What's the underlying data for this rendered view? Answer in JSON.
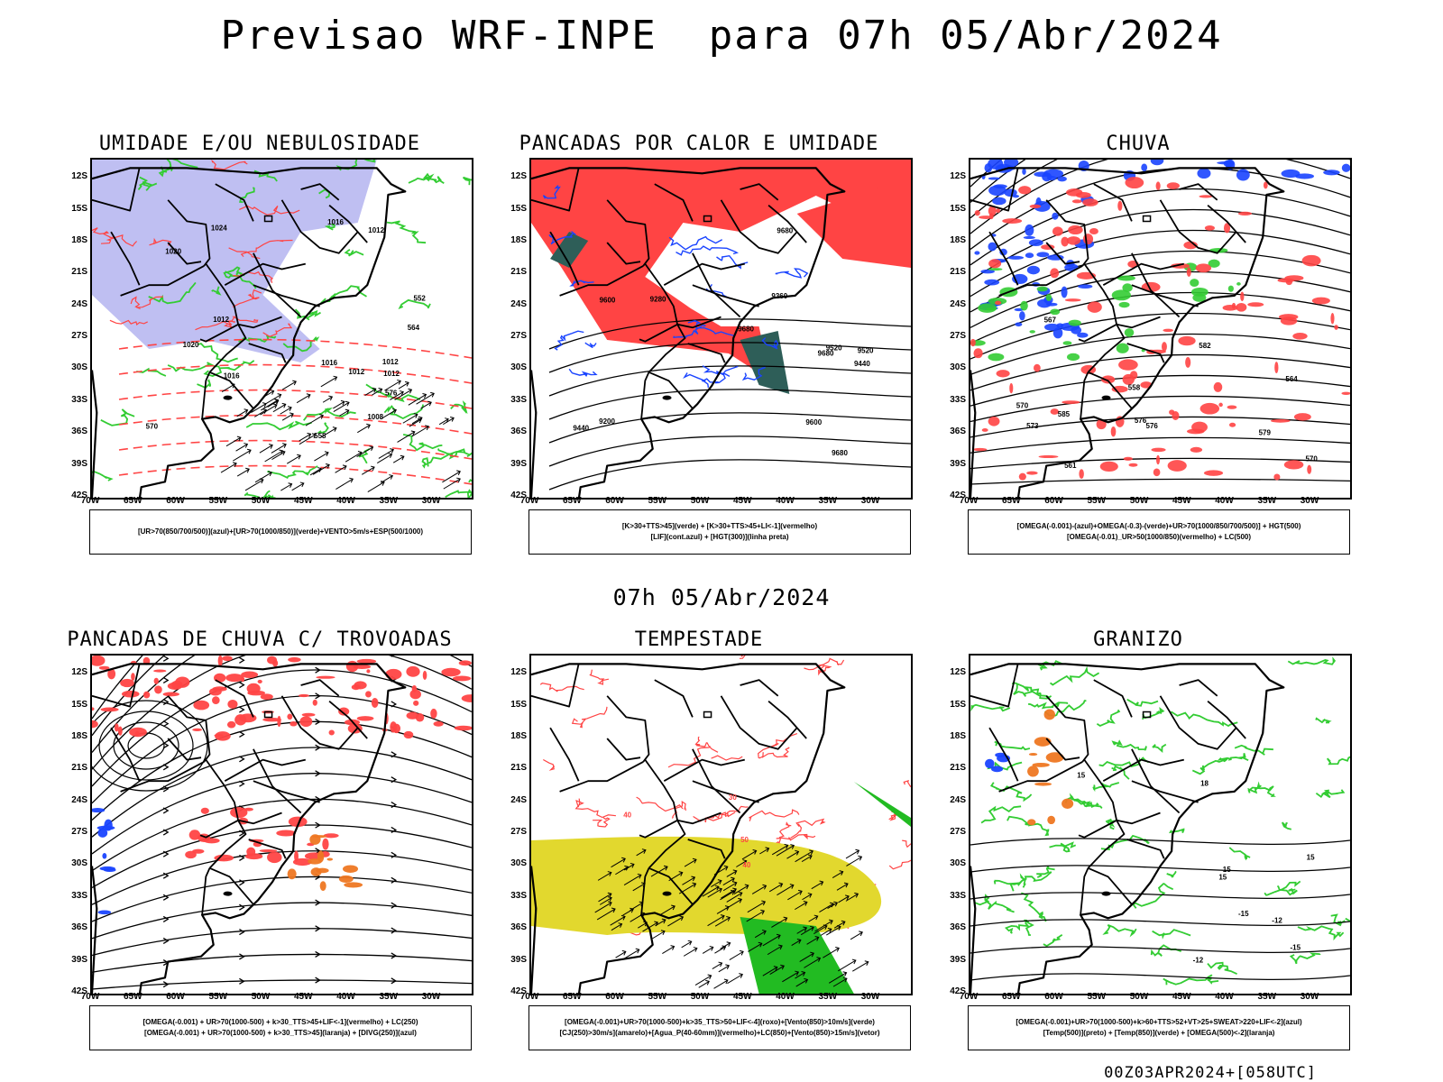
{
  "title": "Previsao WRF-INPE  para 07h 05/Abr/2024",
  "subtitle": "07h 05/Abr/2024",
  "footer": "00Z03APR2024+[058UTC]",
  "lat_labels": [
    "12S",
    "15S",
    "18S",
    "21S",
    "24S",
    "27S",
    "30S",
    "33S",
    "36S",
    "39S",
    "42S"
  ],
  "lon_labels": [
    "70W",
    "65W",
    "60W",
    "55W",
    "50W",
    "45W",
    "40W",
    "35W",
    "30W"
  ],
  "colors": {
    "humidity_purple": "#aaaaee",
    "green": "#33cc33",
    "red": "#ff4444",
    "blue": "#1a44ff",
    "teal": "#2e5e58",
    "yellow": "#e2d82e",
    "orange": "#ee7722"
  },
  "panels": [
    {
      "title": "UMIDADE E/OU NEBULOSIDADE",
      "legend": [
        "[UR>70(850/700/500)](azul)+[UR>70(1000/850)](verde)+VENTO>5m/s+ESP(500/1000)"
      ],
      "labels": [
        "1012",
        "1012",
        "1012",
        "1012",
        "1016",
        "1016",
        "1020",
        "1016",
        "1012",
        "1008",
        "1020",
        "1024",
        "576",
        "564",
        "558",
        "552",
        "570"
      ]
    },
    {
      "title": "PANCADAS POR CALOR E UMIDADE",
      "legend": [
        "[K>30+TTS>45](verde) + [K>30+TTS>45+LI<-1](vermelho)",
        "[LIF](cont.azul) + [HGT(300)](linha preta)"
      ],
      "labels": [
        "9680",
        "9680",
        "9680",
        "9680",
        "9600",
        "9600",
        "9520",
        "9520",
        "9440",
        "9440",
        "9360",
        "9280",
        "9200"
      ]
    },
    {
      "title": "CHUVA",
      "legend": [
        "[OMEGA(-0.001)-(azul)+OMEGA(-0.3)-(verde)+UR>70(1000/850/700/500)] + HGT(500)",
        "[OMEGA(-0.01)_UR>50(1000/850)(vermelho) + LC(500)"
      ],
      "labels": [
        "585",
        "582",
        "579",
        "576",
        "573",
        "570",
        "567",
        "564",
        "561",
        "558",
        "576",
        "570"
      ]
    },
    {
      "title": "PANCADAS DE CHUVA C/ TROVOADAS",
      "legend": [
        "[OMEGA(-0.001) + UR>70(1000-500) + k>30_TTS>45+LIF<-1](vermelho) + LC(250)",
        "[OMEGA(-0.001) + UR>70(1000-500) + k>30_TTS>45](laranja) + [DIVG(250)](azul)"
      ],
      "labels": []
    },
    {
      "title": "TEMPESTADE",
      "legend": [
        "[OMEGA(-0.001)+UR>70(1000-500)+k>35_TTS>50+LIF<-4](roxo)+[Vento(850)>10m/s](verde)",
        "[CJ(250)>30m/s](amarelo)+[Agua_P(40-60mm)](vermelho)+LC(850)+[Vento(850)>15m/s](vetor)"
      ],
      "labels": [
        "50",
        "40",
        "40",
        "30"
      ]
    },
    {
      "title": "GRANIZO",
      "legend": [
        "[OMEGA(-0.001)+UR>70(1000-500)+k>60+TTS>52+VT>25+SWEAT>220+LIF<-2](azul)",
        "[Temp(500)](preto) + [Temp(850)](verde) + [OMEGA(500)<-2](laranja)"
      ],
      "labels": [
        "15",
        "15",
        "15",
        "15",
        "-12",
        "-15",
        "-12",
        "-15",
        "18"
      ]
    }
  ]
}
